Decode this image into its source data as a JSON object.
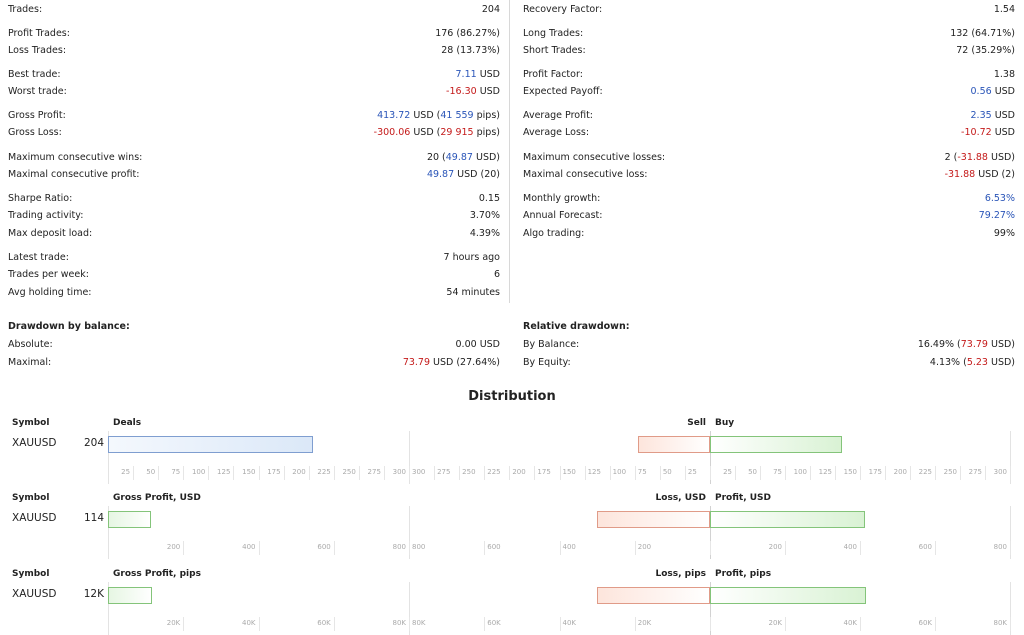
{
  "stats": {
    "left": [
      {
        "label": "Trades:",
        "value": [
          {
            "t": "204"
          }
        ]
      },
      {
        "label": "Profit Trades:",
        "value": [
          {
            "t": "176 (86.27%)"
          }
        ]
      },
      {
        "label": "Loss Trades:",
        "value": [
          {
            "t": "28 (13.73%)"
          }
        ]
      },
      {
        "label": "Best trade:",
        "value": [
          {
            "t": "7.11",
            "c": "blue"
          },
          {
            "t": " USD"
          }
        ]
      },
      {
        "label": "Worst trade:",
        "value": [
          {
            "t": "-16.30",
            "c": "red"
          },
          {
            "t": " USD"
          }
        ]
      },
      {
        "label": "Gross Profit:",
        "value": [
          {
            "t": "413.72",
            "c": "blue"
          },
          {
            "t": " USD ("
          },
          {
            "t": "41 559",
            "c": "blue"
          },
          {
            "t": " pips)"
          }
        ]
      },
      {
        "label": "Gross Loss:",
        "value": [
          {
            "t": "-300.06",
            "c": "red"
          },
          {
            "t": " USD ("
          },
          {
            "t": "29 915",
            "c": "red"
          },
          {
            "t": " pips)"
          }
        ]
      },
      {
        "label": "Maximum consecutive wins:",
        "value": [
          {
            "t": "20 ("
          },
          {
            "t": "49.87",
            "c": "blue"
          },
          {
            "t": " USD)"
          }
        ]
      },
      {
        "label": "Maximal consecutive profit:",
        "value": [
          {
            "t": "49.87",
            "c": "blue"
          },
          {
            "t": " USD (20)"
          }
        ]
      },
      {
        "label": "Sharpe Ratio:",
        "value": [
          {
            "t": "0.15"
          }
        ]
      },
      {
        "label": "Trading activity:",
        "value": [
          {
            "t": "3.70%"
          }
        ]
      },
      {
        "label": "Max deposit load:",
        "value": [
          {
            "t": "4.39%"
          }
        ]
      },
      {
        "label": "Latest trade:",
        "value": [
          {
            "t": "7 hours ago"
          }
        ]
      },
      {
        "label": "Trades per week:",
        "value": [
          {
            "t": "6"
          }
        ]
      },
      {
        "label": "Avg holding time:",
        "value": [
          {
            "t": "54 minutes"
          }
        ]
      }
    ],
    "right": [
      {
        "label": "Recovery Factor:",
        "value": [
          {
            "t": "1.54"
          }
        ]
      },
      {
        "label": "Long Trades:",
        "value": [
          {
            "t": "132 (64.71%)"
          }
        ]
      },
      {
        "label": "Short Trades:",
        "value": [
          {
            "t": "72 (35.29%)"
          }
        ]
      },
      {
        "label": "Profit Factor:",
        "value": [
          {
            "t": "1.38"
          }
        ]
      },
      {
        "label": "Expected Payoff:",
        "value": [
          {
            "t": "0.56",
            "c": "blue"
          },
          {
            "t": " USD"
          }
        ]
      },
      {
        "label": "Average Profit:",
        "value": [
          {
            "t": "2.35",
            "c": "blue"
          },
          {
            "t": " USD"
          }
        ]
      },
      {
        "label": "Average Loss:",
        "value": [
          {
            "t": "-10.72",
            "c": "red"
          },
          {
            "t": " USD"
          }
        ]
      },
      {
        "label": "Maximum consecutive losses:",
        "value": [
          {
            "t": "2 ("
          },
          {
            "t": "-31.88",
            "c": "red"
          },
          {
            "t": " USD)"
          }
        ]
      },
      {
        "label": "Maximal consecutive loss:",
        "value": [
          {
            "t": "-31.88",
            "c": "red"
          },
          {
            "t": " USD (2)"
          }
        ]
      },
      {
        "label": "Monthly growth:",
        "value": [
          {
            "t": "6.53%",
            "c": "blue"
          }
        ]
      },
      {
        "label": "Annual Forecast:",
        "value": [
          {
            "t": "79.27%",
            "c": "blue"
          }
        ]
      },
      {
        "label": "Algo trading:",
        "value": [
          {
            "t": "99%"
          }
        ]
      }
    ]
  },
  "drawdown": {
    "title": "Drawdown by balance:",
    "rows": [
      {
        "label": "Absolute:",
        "value": [
          {
            "t": "0.00 USD"
          }
        ]
      },
      {
        "label": "Maximal:",
        "value": [
          {
            "t": "73.79",
            "c": "red"
          },
          {
            "t": " USD (27.64%)"
          }
        ]
      }
    ]
  },
  "relative": {
    "title": "Relative drawdown:",
    "rows": [
      {
        "label": "By Balance:",
        "value": [
          {
            "t": "16.49% ("
          },
          {
            "t": "73.79",
            "c": "red"
          },
          {
            "t": " USD)"
          }
        ]
      },
      {
        "label": "By Equity:",
        "value": [
          {
            "t": "4.13% ("
          },
          {
            "t": "5.23",
            "c": "red"
          },
          {
            "t": " USD)"
          }
        ]
      }
    ]
  },
  "distribution": {
    "title": "Distribution",
    "sections": [
      {
        "symbol_header": "Symbol",
        "symbol": "XAUUSD",
        "count": "204",
        "left_header": "Deals",
        "right_header_left": "Sell",
        "right_header_right": "Buy",
        "left_value": 204,
        "left_max": 300,
        "right_left_value": 72,
        "right_left_max": 300,
        "right_right_value": 132,
        "right_right_max": 300,
        "left_ticks": [
          "25",
          "50",
          "75",
          "100",
          "125",
          "150",
          "175",
          "200",
          "225",
          "250",
          "275",
          "300"
        ],
        "right_left_ticks": [
          "300",
          "275",
          "250",
          "225",
          "200",
          "175",
          "150",
          "125",
          "100",
          "75",
          "50",
          "25"
        ],
        "right_right_ticks": [
          "25",
          "50",
          "75",
          "100",
          "125",
          "150",
          "175",
          "200",
          "225",
          "250",
          "275",
          "300"
        ]
      },
      {
        "symbol_header": "Symbol",
        "symbol": "XAUUSD",
        "count": "114",
        "left_header": "Gross Profit, USD",
        "right_header_left": "Loss, USD",
        "right_header_right": "Profit, USD",
        "left_value": 114,
        "left_max": 800,
        "right_left_value": 300.06,
        "right_left_max": 800,
        "right_right_value": 413.72,
        "right_right_max": 800,
        "left_ticks": [
          "200",
          "400",
          "600",
          "800"
        ],
        "right_left_ticks": [
          "800",
          "600",
          "400",
          "200"
        ],
        "right_right_ticks": [
          "200",
          "400",
          "600",
          "800"
        ]
      },
      {
        "symbol_header": "Symbol",
        "symbol": "XAUUSD",
        "count": "12K",
        "left_header": "Gross Profit, pips",
        "right_header_left": "Loss, pips",
        "right_header_right": "Profit, pips",
        "left_value": 11700,
        "left_max": 80000,
        "right_left_value": 29915,
        "right_left_max": 80000,
        "right_right_value": 41559,
        "right_right_max": 80000,
        "left_ticks": [
          "20K",
          "40K",
          "60K",
          "80K"
        ],
        "right_left_ticks": [
          "80K",
          "60K",
          "40K",
          "20K"
        ],
        "right_right_ticks": [
          "20K",
          "40K",
          "60K",
          "80K"
        ]
      }
    ]
  },
  "colors": {
    "blue": "#2a55b8",
    "red": "#c41a1a",
    "bar_blue": "#7f9ed0",
    "bar_green": "#84c47a",
    "bar_red": "#e09b88"
  }
}
